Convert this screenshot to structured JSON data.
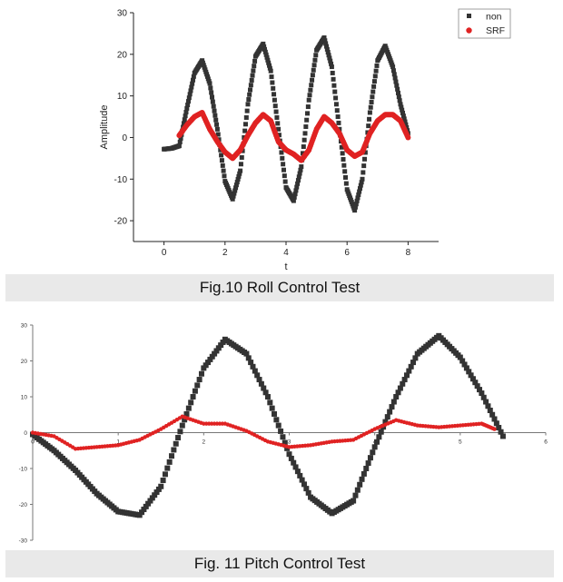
{
  "figure1": {
    "caption": "Fig.10 Roll Control Test",
    "chart_data": {
      "type": "scatter",
      "xlabel": "t",
      "ylabel": "Amplitude",
      "xlim": [
        -1,
        9
      ],
      "ylim": [
        -25,
        30
      ],
      "xticks": [
        0,
        2,
        4,
        6,
        8
      ],
      "yticks": [
        -20,
        -10,
        0,
        10,
        20,
        30
      ],
      "grid": false,
      "legend": "top-right",
      "series": [
        {
          "name": "non",
          "marker": "square",
          "color": "#333333",
          "x": [
            0.0,
            0.25,
            0.5,
            0.75,
            1.0,
            1.25,
            1.5,
            1.75,
            2.0,
            2.25,
            2.5,
            2.75,
            3.0,
            3.25,
            3.5,
            3.75,
            4.0,
            4.25,
            4.5,
            4.75,
            5.0,
            5.25,
            5.5,
            5.75,
            6.0,
            6.25,
            6.5,
            6.75,
            7.0,
            7.25,
            7.5,
            7.75,
            8.0
          ],
          "y": [
            -2.8,
            -2.6,
            -2.0,
            7.0,
            15.5,
            18.5,
            13.0,
            2.0,
            -10.5,
            -14.8,
            -8.0,
            8.0,
            19.5,
            22.5,
            16.0,
            2.0,
            -12.0,
            -15.2,
            -7.0,
            9.0,
            21.0,
            24.0,
            17.0,
            2.0,
            -12.5,
            -17.5,
            -10.0,
            6.0,
            18.5,
            22.0,
            17.0,
            8.0,
            1.0
          ]
        },
        {
          "name": "SRF",
          "marker": "circle",
          "color": "#e02222",
          "x": [
            0.5,
            0.75,
            1.0,
            1.25,
            1.5,
            1.75,
            2.0,
            2.25,
            2.5,
            2.75,
            3.0,
            3.25,
            3.5,
            3.75,
            4.0,
            4.25,
            4.5,
            4.75,
            5.0,
            5.25,
            5.5,
            5.75,
            6.0,
            6.25,
            6.5,
            6.75,
            7.0,
            7.25,
            7.5,
            7.75,
            8.0
          ],
          "y": [
            0.5,
            3.0,
            5.0,
            6.0,
            2.0,
            -1.0,
            -3.5,
            -5.0,
            -3.0,
            0.5,
            3.5,
            5.5,
            4.0,
            -1.0,
            -3.0,
            -4.0,
            -5.5,
            -3.0,
            2.0,
            5.0,
            3.5,
            1.0,
            -3.0,
            -4.5,
            -3.5,
            1.0,
            4.0,
            5.5,
            5.5,
            4.0,
            0.0
          ]
        }
      ]
    }
  },
  "figure2": {
    "caption": "Fig. 11 Pitch Control Test",
    "chart_data": {
      "type": "scatter",
      "xlim": [
        0,
        6
      ],
      "ylim": [
        -30,
        30
      ],
      "xticks": [
        0,
        1,
        2,
        3,
        4,
        5,
        6
      ],
      "yticks": [
        -30,
        -20,
        -10,
        0,
        10,
        20,
        30
      ],
      "grid": false,
      "legend": "none",
      "series": [
        {
          "marker": "square",
          "color": "#333333",
          "x": [
            0.0,
            0.25,
            0.5,
            0.75,
            1.0,
            1.25,
            1.5,
            1.75,
            2.0,
            2.25,
            2.5,
            2.75,
            3.0,
            3.25,
            3.5,
            3.75,
            4.0,
            4.25,
            4.5,
            4.75,
            5.0,
            5.25,
            5.5
          ],
          "y": [
            -0.5,
            -5.0,
            -10.5,
            -17.0,
            -22.0,
            -23.0,
            -15.0,
            2.0,
            18.0,
            26.0,
            22.0,
            10.0,
            -6.0,
            -18.0,
            -22.5,
            -19.0,
            -4.0,
            10.0,
            22.0,
            27.0,
            21.0,
            11.0,
            -1.0
          ]
        },
        {
          "marker": "circle",
          "color": "#e02222",
          "x": [
            0.0,
            0.25,
            0.5,
            0.75,
            1.0,
            1.25,
            1.5,
            1.75,
            2.0,
            2.25,
            2.5,
            2.75,
            3.0,
            3.25,
            3.5,
            3.75,
            4.0,
            4.25,
            4.5,
            4.75,
            5.0,
            5.25,
            5.4
          ],
          "y": [
            0.0,
            -1.0,
            -4.5,
            -4.0,
            -3.5,
            -2.0,
            1.0,
            4.5,
            2.5,
            2.5,
            0.5,
            -2.5,
            -4.0,
            -3.5,
            -2.5,
            -2.0,
            1.0,
            3.5,
            2.0,
            1.5,
            2.0,
            2.5,
            1.0
          ]
        }
      ]
    }
  }
}
